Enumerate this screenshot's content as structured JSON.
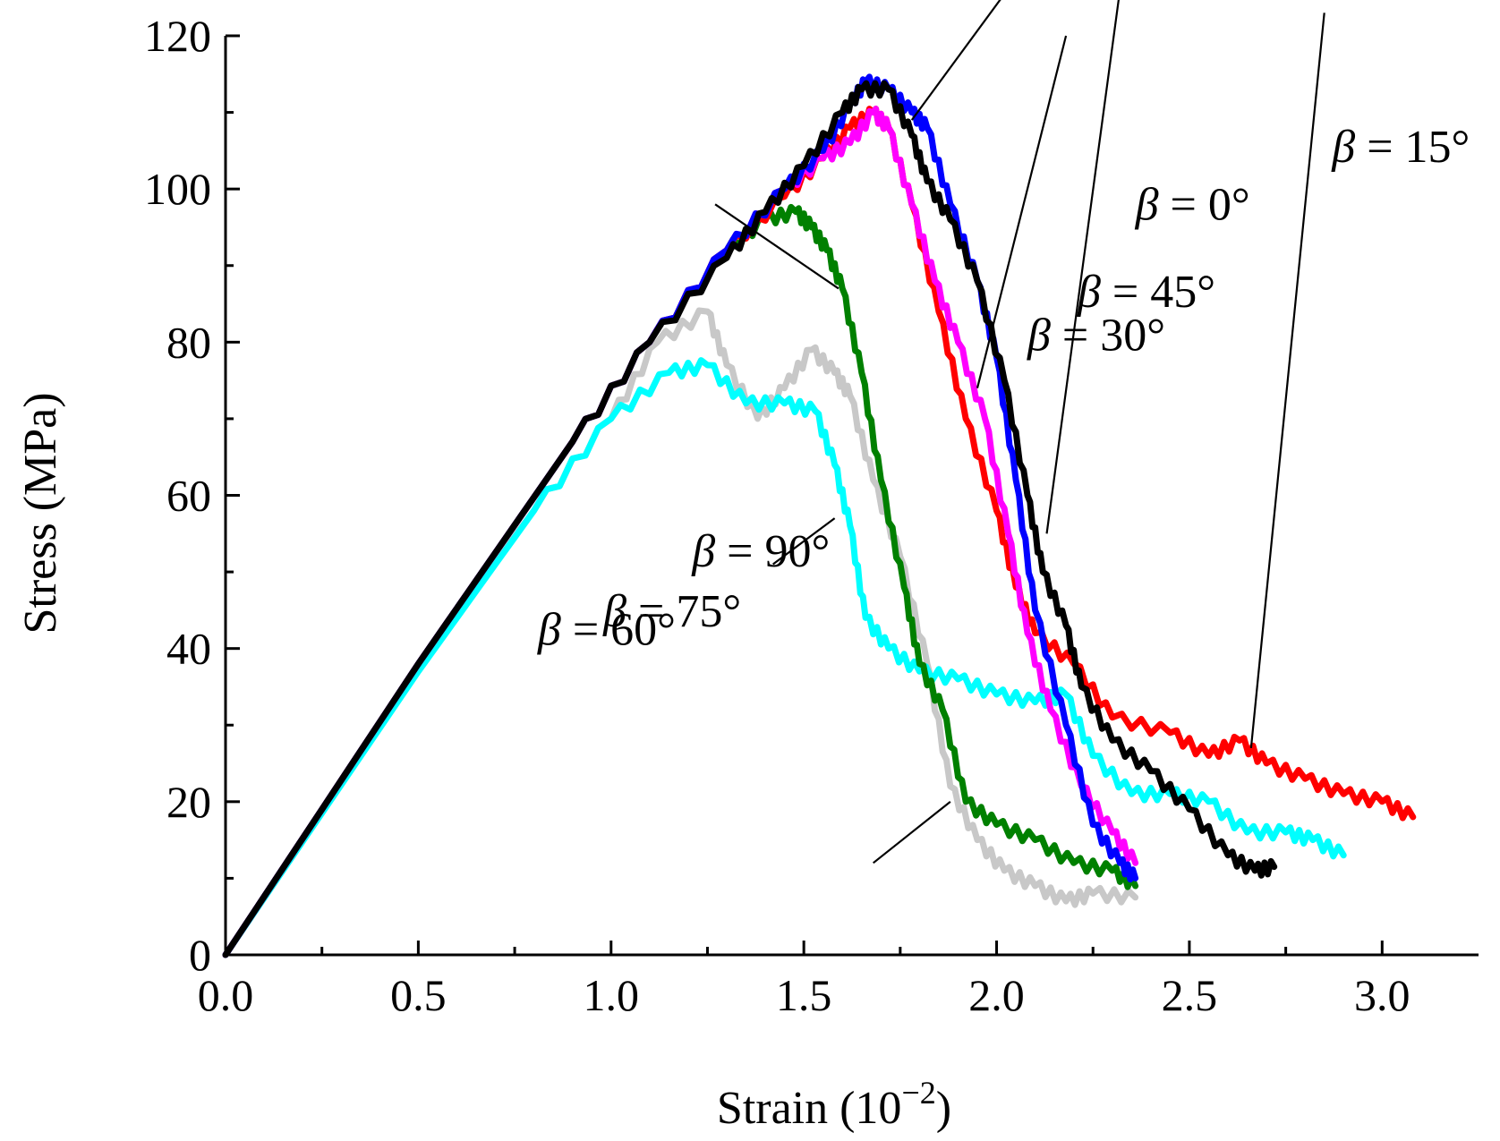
{
  "chart_data": {
    "type": "line",
    "title": "",
    "xlabel": "Strain (10",
    "xlabel_exponent": "−2",
    "xlabel_close": ")",
    "ylabel": "Stress (MPa)",
    "xlim": [
      0,
      3.25
    ],
    "ylim": [
      0,
      120
    ],
    "grid": false,
    "legend": "none",
    "x_ticks": [
      "0.0",
      "0.5",
      "1.0",
      "1.5",
      "2.0",
      "2.5",
      "3.0"
    ],
    "y_ticks": [
      "0",
      "20",
      "40",
      "60",
      "80",
      "100",
      "120"
    ],
    "x_tick_values": [
      0,
      0.5,
      1.0,
      1.5,
      2.0,
      2.5,
      3.0
    ],
    "y_tick_values": [
      0,
      20,
      40,
      60,
      80,
      100,
      120
    ],
    "series": [
      {
        "name": "β = 0°",
        "beta_symbol": "β",
        "label_rest": " = 0°",
        "color": "#000000",
        "x": [
          0,
          0.5,
          0.9,
          1.1,
          1.3,
          1.4,
          1.5,
          1.6,
          1.65,
          1.72,
          1.78,
          1.82,
          1.88,
          1.95,
          2.02,
          2.08,
          2.12,
          2.18,
          2.22,
          2.3,
          2.4,
          2.5,
          2.6,
          2.67,
          2.72
        ],
        "y": [
          0,
          38,
          67,
          80,
          91,
          97,
          103,
          110,
          113,
          113,
          107,
          101,
          96,
          88,
          75,
          60,
          50,
          43,
          35,
          28,
          24,
          19,
          13,
          11,
          11.5
        ]
      },
      {
        "name": "β = 15°",
        "beta_symbol": "β",
        "label_rest": " = 15°",
        "color": "#ff0000",
        "x": [
          0,
          0.5,
          0.9,
          1.1,
          1.3,
          1.45,
          1.55,
          1.62,
          1.68,
          1.72,
          1.78,
          1.85,
          1.92,
          2.0,
          2.05,
          2.1,
          2.2,
          2.3,
          2.45,
          2.55,
          2.63,
          2.7,
          2.8,
          2.9,
          3.0,
          3.08
        ],
        "y": [
          0,
          38,
          67,
          80,
          92,
          99,
          104,
          108,
          110,
          108,
          98,
          84,
          70,
          58,
          48,
          42,
          38,
          31,
          29,
          26,
          28,
          25,
          23,
          21,
          20,
          18
        ]
      },
      {
        "name": "β = 30°",
        "beta_symbol": "β",
        "label_rest": " = 30°",
        "color": "#0000ff",
        "x": [
          0,
          0.5,
          0.9,
          1.1,
          1.3,
          1.45,
          1.55,
          1.62,
          1.66,
          1.72,
          1.78,
          1.82,
          1.88,
          1.95,
          2.0,
          2.05,
          2.1,
          2.18,
          2.25,
          2.32,
          2.36
        ],
        "y": [
          0,
          38,
          67,
          80,
          92,
          100,
          105,
          111,
          114,
          113,
          110,
          108,
          98,
          88,
          78,
          62,
          45,
          30,
          17,
          12,
          10
        ]
      },
      {
        "name": "β = 45°",
        "beta_symbol": "β",
        "label_rest": " = 45°",
        "color": "#ff00ff",
        "x": [
          0,
          0.5,
          0.9,
          1.1,
          1.3,
          1.45,
          1.55,
          1.62,
          1.68,
          1.72,
          1.78,
          1.84,
          1.9,
          1.97,
          2.03,
          2.08,
          2.14,
          2.22,
          2.3,
          2.36
        ],
        "y": [
          0,
          38,
          67,
          80,
          92,
          100,
          104,
          106,
          110,
          108,
          98,
          88,
          80,
          70,
          55,
          42,
          32,
          22,
          16,
          12
        ]
      },
      {
        "name": "β = 60°",
        "beta_symbol": "β",
        "label_rest": " = 60°",
        "color": "#008000",
        "x": [
          0,
          0.5,
          0.9,
          1.1,
          1.3,
          1.4,
          1.48,
          1.52,
          1.56,
          1.6,
          1.65,
          1.7,
          1.76,
          1.8,
          1.86,
          1.92,
          2.0,
          2.1,
          2.2,
          2.3,
          2.36
        ],
        "y": [
          0,
          38,
          67,
          80,
          92,
          96,
          97,
          95,
          92,
          87,
          76,
          62,
          48,
          38,
          32,
          20,
          17,
          15,
          12,
          11,
          9
        ]
      },
      {
        "name": "β = 75°",
        "beta_symbol": "β",
        "label_rest": " = 75°",
        "color": "#00ffff",
        "x": [
          0,
          0.5,
          0.8,
          1.0,
          1.15,
          1.25,
          1.35,
          1.45,
          1.53,
          1.58,
          1.62,
          1.66,
          1.72,
          1.8,
          1.9,
          2.0,
          2.1,
          2.18,
          2.25,
          2.35,
          2.45,
          2.55,
          2.65,
          2.75,
          2.82,
          2.9
        ],
        "y": [
          0,
          37,
          58,
          70,
          76,
          77,
          72,
          72,
          71,
          64,
          56,
          44,
          40,
          37,
          36,
          34,
          33,
          34,
          26,
          21,
          21,
          20,
          16,
          16,
          15,
          13
        ]
      },
      {
        "name": "β = 90°",
        "beta_symbol": "β",
        "label_rest": " = 90°",
        "color": "#c8c8c8",
        "x": [
          0,
          0.5,
          0.8,
          1.0,
          1.12,
          1.25,
          1.3,
          1.38,
          1.45,
          1.52,
          1.58,
          1.62,
          1.68,
          1.75,
          1.82,
          1.88,
          1.95,
          2.02,
          2.1,
          2.18,
          2.25,
          2.36
        ],
        "y": [
          0,
          38,
          58,
          70,
          80,
          84,
          77,
          70,
          74,
          79,
          76,
          73,
          62,
          52,
          38,
          22,
          15,
          11,
          9,
          7,
          8,
          7.5
        ]
      }
    ],
    "labels": [
      {
        "series": 0,
        "text_at": [
          2.36,
          3.2
        ],
        "leader_from": [
          2.32,
          4.2
        ],
        "leader_to": [
          2.13,
          55
        ]
      },
      {
        "series": 1,
        "text_at": [
          2.87,
          3.45
        ],
        "leader_from": [
          2.85,
          4.1
        ],
        "leader_to": [
          2.66,
          27
        ]
      },
      {
        "series": 2,
        "text_at": [
          2.08,
          2.63
        ],
        "leader_from": [
          2.05,
          4.25
        ],
        "leader_to": [
          1.78,
          109
        ]
      },
      {
        "series": 3,
        "text_at": [
          2.21,
          2.82
        ],
        "leader_from": [
          2.18,
          4.0
        ],
        "leader_to": [
          1.95,
          74
        ]
      },
      {
        "series": 4,
        "text_at": [
          0.81,
          1.35
        ],
        "leader_from": [
          1.27,
          98
        ],
        "leader_to": [
          1.59,
          87
        ]
      },
      {
        "series": 5,
        "text_at": [
          0.98,
          1.43
        ],
        "leader_from": [
          1.42,
          51
        ],
        "leader_to": [
          1.58,
          57
        ]
      },
      {
        "series": 6,
        "text_at": [
          1.21,
          1.69
        ],
        "leader_from": [
          1.68,
          12
        ],
        "leader_to": [
          1.88,
          20
        ]
      }
    ]
  }
}
